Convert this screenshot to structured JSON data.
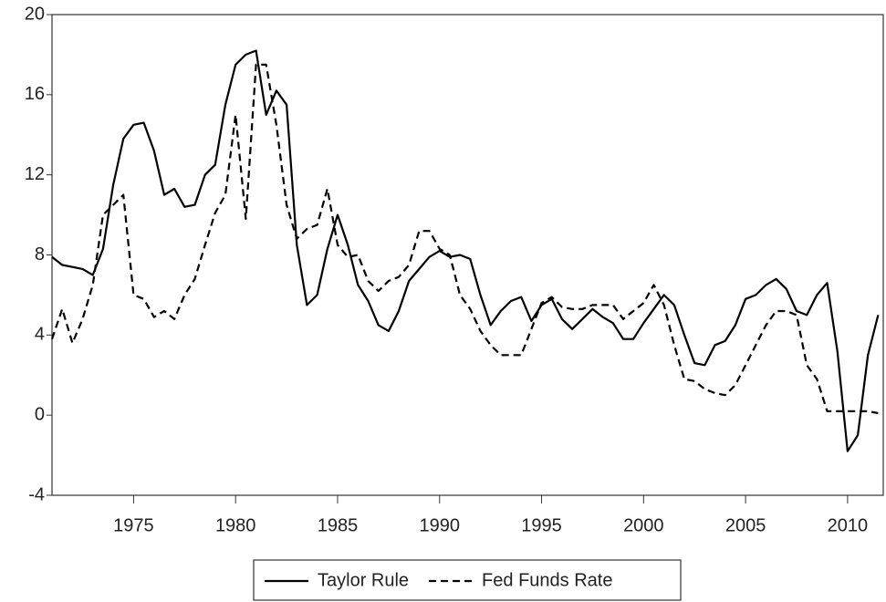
{
  "chart_data": {
    "type": "line",
    "x": [
      1971.0,
      1971.5,
      1972.0,
      1972.5,
      1973.0,
      1973.5,
      1974.0,
      1974.5,
      1975.0,
      1975.5,
      1976.0,
      1976.5,
      1977.0,
      1977.5,
      1978.0,
      1978.5,
      1979.0,
      1979.5,
      1980.0,
      1980.5,
      1981.0,
      1981.5,
      1982.0,
      1982.5,
      1983.0,
      1983.5,
      1984.0,
      1984.5,
      1985.0,
      1985.5,
      1986.0,
      1986.5,
      1987.0,
      1987.5,
      1988.0,
      1988.5,
      1989.0,
      1989.5,
      1990.0,
      1990.5,
      1991.0,
      1991.5,
      1992.0,
      1992.5,
      1993.0,
      1993.5,
      1994.0,
      1994.5,
      1995.0,
      1995.5,
      1996.0,
      1996.5,
      1997.0,
      1997.5,
      1998.0,
      1998.5,
      1999.0,
      1999.5,
      2000.0,
      2000.5,
      2001.0,
      2001.5,
      2002.0,
      2002.5,
      2003.0,
      2003.5,
      2004.0,
      2004.5,
      2005.0,
      2005.5,
      2006.0,
      2006.5,
      2007.0,
      2007.5,
      2008.0,
      2008.5,
      2009.0,
      2009.5,
      2010.0,
      2010.5,
      2011.0,
      2011.5
    ],
    "series": [
      {
        "name": "Taylor Rule",
        "color": "#000000",
        "linestyle": "solid",
        "values": [
          7.9,
          7.5,
          7.4,
          7.3,
          7.0,
          8.3,
          11.5,
          13.8,
          14.5,
          14.6,
          13.2,
          11.0,
          11.3,
          10.4,
          10.5,
          12.0,
          12.5,
          15.5,
          17.5,
          18.0,
          18.2,
          15.0,
          16.2,
          15.5,
          8.5,
          5.5,
          6.0,
          8.3,
          10.0,
          8.5,
          6.5,
          5.7,
          4.5,
          4.2,
          5.2,
          6.7,
          7.3,
          7.9,
          8.2,
          7.9,
          8.0,
          7.8,
          6.0,
          4.5,
          5.2,
          5.7,
          5.9,
          4.7,
          5.5,
          5.8,
          4.8,
          4.3,
          4.8,
          5.3,
          4.9,
          4.6,
          3.8,
          3.8,
          4.6,
          5.3,
          6.0,
          5.5,
          4.0,
          2.6,
          2.5,
          3.5,
          3.7,
          4.5,
          5.8,
          6.0,
          6.5,
          6.8,
          6.3,
          5.2,
          5.0,
          6.0,
          6.6,
          3.2,
          -1.8,
          -1.0,
          3.0,
          5.0
        ]
      },
      {
        "name": "Fed Funds Rate",
        "color": "#000000",
        "linestyle": "dashed",
        "values": [
          3.8,
          5.3,
          3.6,
          4.8,
          6.5,
          10.0,
          10.5,
          11.0,
          6.0,
          5.8,
          4.9,
          5.2,
          4.8,
          6.0,
          6.8,
          8.5,
          10.1,
          11.0,
          15.0,
          9.8,
          17.5,
          17.5,
          14.5,
          10.5,
          8.8,
          9.3,
          9.5,
          11.3,
          8.5,
          7.9,
          8.0,
          6.7,
          6.2,
          6.7,
          6.9,
          7.5,
          9.2,
          9.2,
          8.3,
          8.0,
          6.0,
          5.3,
          4.2,
          3.5,
          3.0,
          3.0,
          3.0,
          4.3,
          5.6,
          5.9,
          5.4,
          5.3,
          5.3,
          5.5,
          5.5,
          5.5,
          4.8,
          5.2,
          5.6,
          6.5,
          5.5,
          3.5,
          1.8,
          1.7,
          1.3,
          1.1,
          1.0,
          1.5,
          2.5,
          3.5,
          4.5,
          5.2,
          5.2,
          5.0,
          2.5,
          1.8,
          0.2,
          0.2,
          0.2,
          0.2,
          0.2,
          0.1
        ]
      }
    ],
    "xlim": [
      1971,
      2011.75
    ],
    "xticks": [
      1975,
      1980,
      1985,
      1990,
      1995,
      2000,
      2005,
      2010
    ],
    "ylim": [
      -4,
      20
    ],
    "yticks": [
      -4,
      0,
      4,
      8,
      12,
      16,
      20
    ],
    "legend": "bottom"
  }
}
